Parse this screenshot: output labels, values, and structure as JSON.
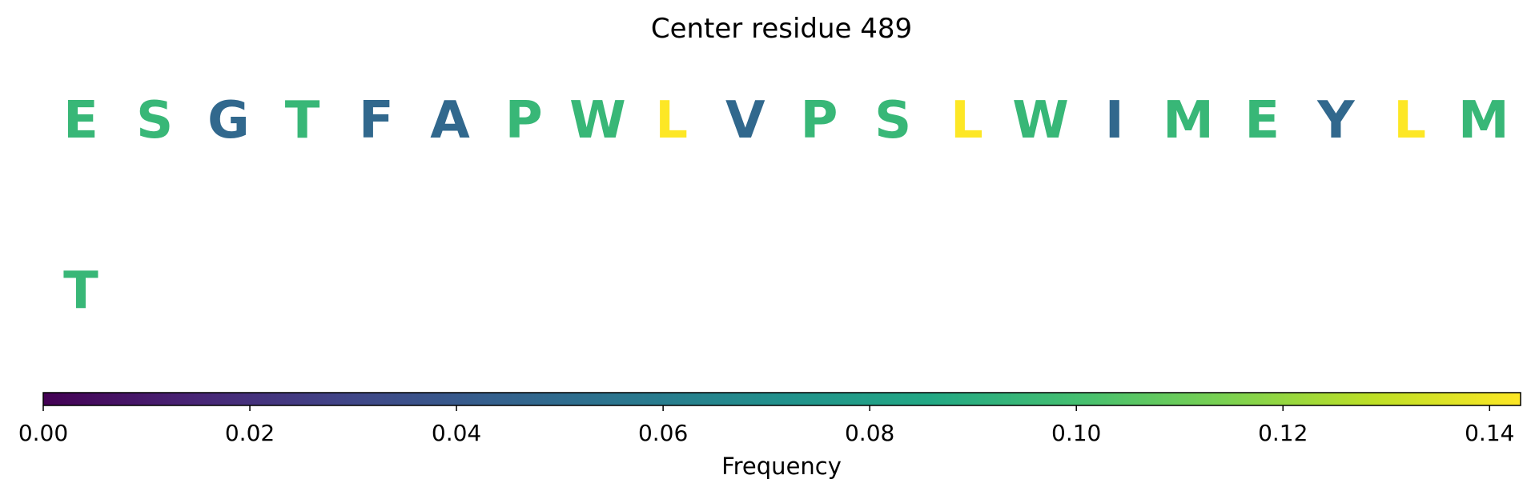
{
  "chart_data": {
    "type": "table",
    "title": "Center residue 489",
    "rows": [
      [
        {
          "letter": "E",
          "frequency": 0.095
        },
        {
          "letter": "S",
          "frequency": 0.095
        },
        {
          "letter": "G",
          "frequency": 0.048
        },
        {
          "letter": "T",
          "frequency": 0.095
        },
        {
          "letter": "F",
          "frequency": 0.048
        },
        {
          "letter": "A",
          "frequency": 0.048
        },
        {
          "letter": "P",
          "frequency": 0.095
        },
        {
          "letter": "W",
          "frequency": 0.095
        },
        {
          "letter": "L",
          "frequency": 0.143
        },
        {
          "letter": "V",
          "frequency": 0.048
        },
        {
          "letter": "P",
          "frequency": 0.095
        },
        {
          "letter": "S",
          "frequency": 0.095
        },
        {
          "letter": "L",
          "frequency": 0.143
        },
        {
          "letter": "W",
          "frequency": 0.095
        },
        {
          "letter": "I",
          "frequency": 0.048
        },
        {
          "letter": "M",
          "frequency": 0.095
        },
        {
          "letter": "E",
          "frequency": 0.095
        },
        {
          "letter": "Y",
          "frequency": 0.048
        },
        {
          "letter": "L",
          "frequency": 0.143
        },
        {
          "letter": "M",
          "frequency": 0.095
        }
      ],
      [
        {
          "letter": "T",
          "frequency": 0.095
        }
      ]
    ],
    "colorbar": {
      "colormap": "viridis",
      "range": [
        0,
        0.143
      ],
      "ticks": [
        0.0,
        0.02,
        0.04,
        0.06,
        0.08,
        0.1,
        0.12,
        0.14
      ],
      "tick_labels": [
        "0.00",
        "0.02",
        "0.04",
        "0.06",
        "0.08",
        "0.10",
        "0.12",
        "0.14"
      ],
      "label": "Frequency",
      "orientation": "horizontal"
    }
  }
}
